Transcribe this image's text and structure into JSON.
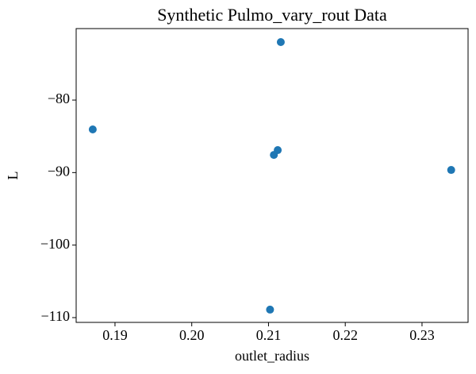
{
  "chart_data": {
    "type": "scatter",
    "title": "Synthetic Pulmo_vary_rout Data",
    "x_label": "outlet_radius",
    "y_label": "L",
    "series": [
      {
        "color": "#1f77b4",
        "x": [
          0.1871,
          0.2116,
          0.2112,
          0.2107,
          0.2338,
          0.2102
        ],
        "values": [
          -84.05,
          -72.0,
          -86.9,
          -87.56,
          -89.64,
          -108.9
        ]
      }
    ],
    "xlim": [
      0.18494,
      0.236
    ],
    "ylim": [
      -110.66,
      -70.14
    ],
    "xticks": [
      0.19,
      {
        "value": 0.2,
        "label": "0.20"
      },
      0.21,
      0.22,
      0.23
    ],
    "yticks": [
      {
        "value": -80,
        "label": "−80"
      },
      {
        "value": -90,
        "label": "−90"
      },
      {
        "value": -100,
        "label": "−100"
      },
      {
        "value": -110,
        "label": "−110"
      }
    ],
    "grid": false
  }
}
